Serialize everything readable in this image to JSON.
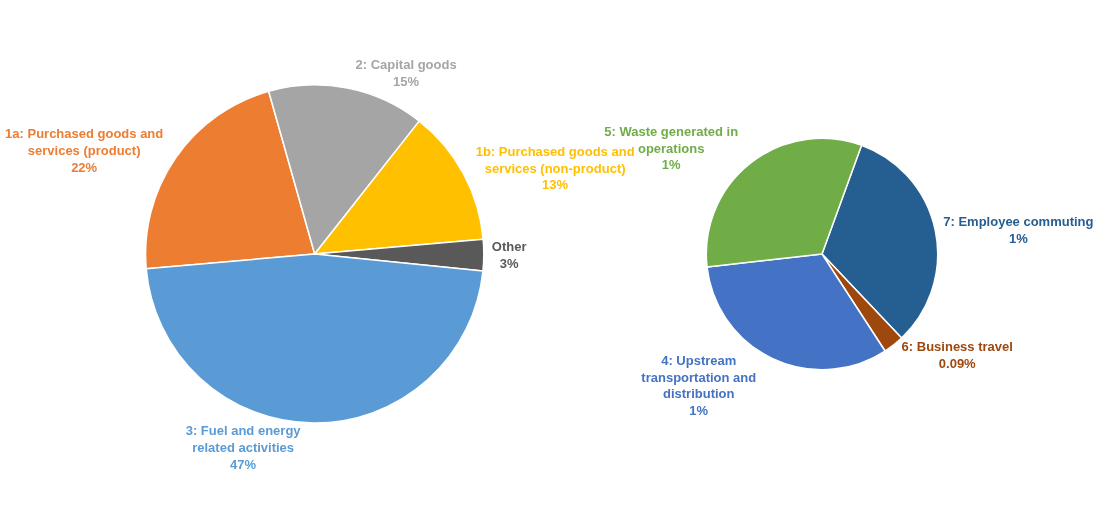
{
  "chart_data": [
    {
      "type": "pie",
      "categories": [
        "1a: Purchased goods and services (product)",
        "2: Capital goods",
        "1b: Purchased goods and services (non-product)",
        "Other",
        "3: Fuel and energy related activities"
      ],
      "values": [
        22,
        15,
        13,
        3,
        47
      ],
      "colors": [
        "#ed7d31",
        "#a5a5a5",
        "#ffc000",
        "#595959",
        "#5b9bd5"
      ],
      "value_labels": [
        "22%",
        "15%",
        "13%",
        "3%",
        "47%"
      ]
    },
    {
      "type": "pie",
      "categories": [
        "7: Employee commuting",
        "6: Business travel",
        "4: Upstream transportation and distribution",
        "5: Waste generated in operations"
      ],
      "values": [
        1,
        0.09,
        1,
        1
      ],
      "colors": [
        "#255e91",
        "#9e480e",
        "#4472c4",
        "#70ad47"
      ],
      "value_labels": [
        "1%",
        "0.09%",
        "1%",
        "1%"
      ]
    }
  ]
}
